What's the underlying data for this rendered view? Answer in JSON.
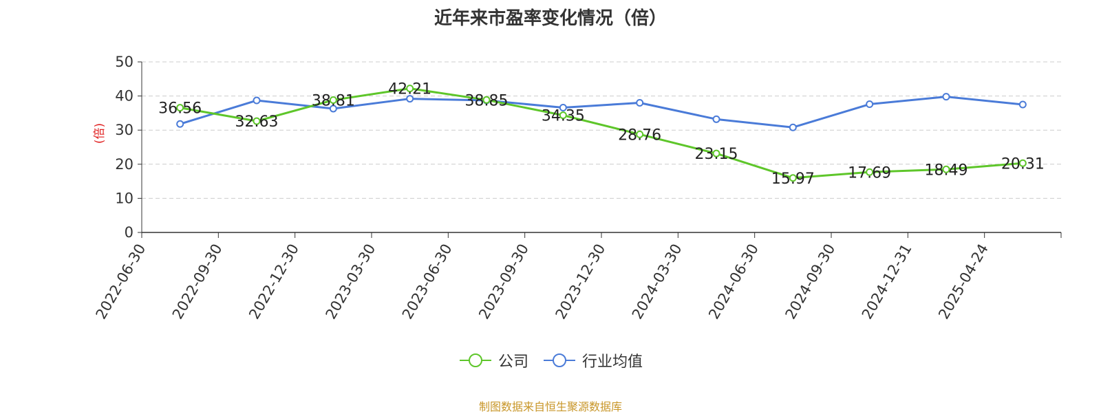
{
  "title": "近年来市盈率变化情况（倍）",
  "source": "制图数据来自恒生聚源数据库",
  "colors": {
    "company": "#5ec62a",
    "industry": "#4a7bd8",
    "ylabel": "#e02020",
    "grid": "#cccccc",
    "axis": "#333333"
  },
  "chart_data": {
    "type": "line",
    "title": "近年来市盈率变化情况（倍）",
    "xlabel": "",
    "ylabel": "(倍)",
    "ylim": [
      0,
      50
    ],
    "yticks": [
      0,
      10,
      20,
      30,
      40,
      50
    ],
    "grid": true,
    "legend_position": "bottom",
    "categories": [
      "2022-06-30",
      "2022-09-30",
      "2022-12-30",
      "2023-03-30",
      "2023-06-30",
      "2023-09-30",
      "2023-12-30",
      "2024-03-30",
      "2024-06-30",
      "2024-09-30",
      "2024-12-31",
      "2025-04-24"
    ],
    "series": [
      {
        "name": "公司",
        "values": [
          36.56,
          32.63,
          38.81,
          42.21,
          38.85,
          34.35,
          28.76,
          23.15,
          15.97,
          17.69,
          18.49,
          20.31
        ],
        "labels": [
          "36.56",
          "32.63",
          "38.81",
          "42.21",
          "38.85",
          "34.35",
          "28.76",
          "23.15",
          "15.97",
          "17.69",
          "18.49",
          "20.31"
        ]
      },
      {
        "name": "行业均值",
        "values": [
          31.8,
          38.7,
          36.3,
          39.2,
          38.7,
          36.6,
          38.0,
          33.2,
          30.8,
          37.6,
          39.8,
          37.5
        ]
      }
    ]
  }
}
